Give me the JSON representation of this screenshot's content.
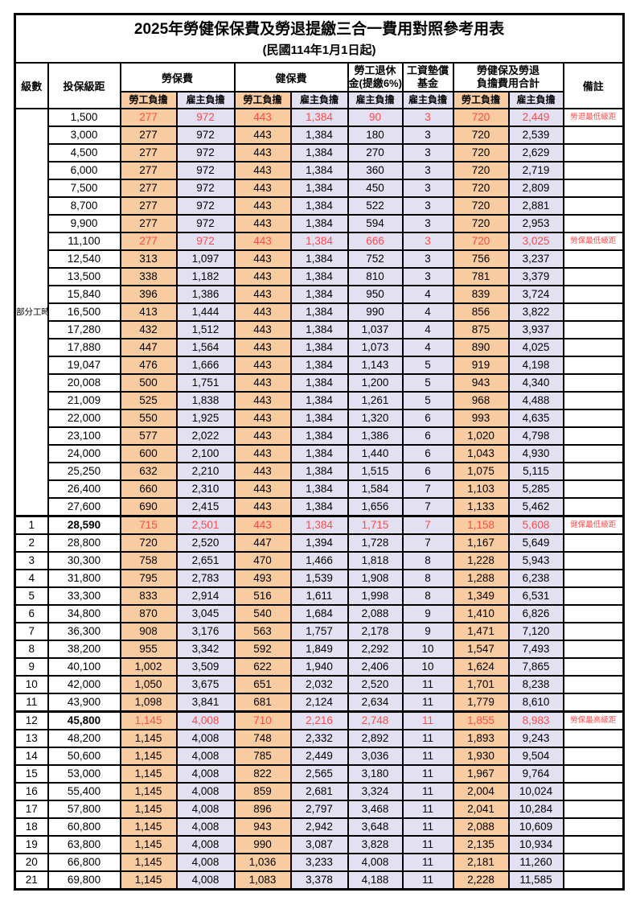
{
  "title": {
    "main": "2025年勞健保保費及勞退提繳三合一費用對照參考用表",
    "sub": "(民國114年1月1日起)"
  },
  "columns": {
    "level": "級數",
    "bracket": "投保級距",
    "labor": "勞保費",
    "health": "健保費",
    "pension": [
      "勞工退休",
      "金(提繳6%)"
    ],
    "fund": [
      "工資墊償",
      "基金"
    ],
    "total": [
      "勞健保及勞退",
      "負擔費用合計"
    ],
    "note": "備註",
    "employee": "勞工負擔",
    "employer": "雇主負擔"
  },
  "part_time": {
    "label": "部分工時",
    "rowspan": 23
  },
  "colors": {
    "employee_bg": "#F8CBA0",
    "employer_bg": "#E2E0F1",
    "highlight_red": "#FF4B4B",
    "border": "#000000"
  },
  "rows": [
    {
      "level": "",
      "bracket": "1,500",
      "labor_emp": "277",
      "labor_er": "972",
      "health_emp": "443",
      "health_er": "1,384",
      "pension": "90",
      "fund": "3",
      "total_emp": "720",
      "total_er": "2,449",
      "note": "勞退最低級距",
      "red": true,
      "em": false
    },
    {
      "level": "",
      "bracket": "3,000",
      "labor_emp": "277",
      "labor_er": "972",
      "health_emp": "443",
      "health_er": "1,384",
      "pension": "180",
      "fund": "3",
      "total_emp": "720",
      "total_er": "2,539",
      "note": "",
      "red": false,
      "em": false
    },
    {
      "level": "",
      "bracket": "4,500",
      "labor_emp": "277",
      "labor_er": "972",
      "health_emp": "443",
      "health_er": "1,384",
      "pension": "270",
      "fund": "3",
      "total_emp": "720",
      "total_er": "2,629",
      "note": "",
      "red": false,
      "em": false
    },
    {
      "level": "",
      "bracket": "6,000",
      "labor_emp": "277",
      "labor_er": "972",
      "health_emp": "443",
      "health_er": "1,384",
      "pension": "360",
      "fund": "3",
      "total_emp": "720",
      "total_er": "2,719",
      "note": "",
      "red": false,
      "em": false
    },
    {
      "level": "",
      "bracket": "7,500",
      "labor_emp": "277",
      "labor_er": "972",
      "health_emp": "443",
      "health_er": "1,384",
      "pension": "450",
      "fund": "3",
      "total_emp": "720",
      "total_er": "2,809",
      "note": "",
      "red": false,
      "em": false
    },
    {
      "level": "",
      "bracket": "8,700",
      "labor_emp": "277",
      "labor_er": "972",
      "health_emp": "443",
      "health_er": "1,384",
      "pension": "522",
      "fund": "3",
      "total_emp": "720",
      "total_er": "2,881",
      "note": "",
      "red": false,
      "em": false
    },
    {
      "level": "",
      "bracket": "9,900",
      "labor_emp": "277",
      "labor_er": "972",
      "health_emp": "443",
      "health_er": "1,384",
      "pension": "594",
      "fund": "3",
      "total_emp": "720",
      "total_er": "2,953",
      "note": "",
      "red": false,
      "em": false
    },
    {
      "level": "",
      "bracket": "11,100",
      "labor_emp": "277",
      "labor_er": "972",
      "health_emp": "443",
      "health_er": "1,384",
      "pension": "666",
      "fund": "3",
      "total_emp": "720",
      "total_er": "3,025",
      "note": "勞保最低級距",
      "red": true,
      "em": false
    },
    {
      "level": "",
      "bracket": "12,540",
      "labor_emp": "313",
      "labor_er": "1,097",
      "health_emp": "443",
      "health_er": "1,384",
      "pension": "752",
      "fund": "3",
      "total_emp": "756",
      "total_er": "3,237",
      "note": "",
      "red": false,
      "em": false
    },
    {
      "level": "",
      "bracket": "13,500",
      "labor_emp": "338",
      "labor_er": "1,182",
      "health_emp": "443",
      "health_er": "1,384",
      "pension": "810",
      "fund": "3",
      "total_emp": "781",
      "total_er": "3,379",
      "note": "",
      "red": false,
      "em": false
    },
    {
      "level": "",
      "bracket": "15,840",
      "labor_emp": "396",
      "labor_er": "1,386",
      "health_emp": "443",
      "health_er": "1,384",
      "pension": "950",
      "fund": "4",
      "total_emp": "839",
      "total_er": "3,724",
      "note": "",
      "red": false,
      "em": false
    },
    {
      "level": "",
      "bracket": "16,500",
      "labor_emp": "413",
      "labor_er": "1,444",
      "health_emp": "443",
      "health_er": "1,384",
      "pension": "990",
      "fund": "4",
      "total_emp": "856",
      "total_er": "3,822",
      "note": "",
      "red": false,
      "em": false
    },
    {
      "level": "",
      "bracket": "17,280",
      "labor_emp": "432",
      "labor_er": "1,512",
      "health_emp": "443",
      "health_er": "1,384",
      "pension": "1,037",
      "fund": "4",
      "total_emp": "875",
      "total_er": "3,937",
      "note": "",
      "red": false,
      "em": false
    },
    {
      "level": "",
      "bracket": "17,880",
      "labor_emp": "447",
      "labor_er": "1,564",
      "health_emp": "443",
      "health_er": "1,384",
      "pension": "1,073",
      "fund": "4",
      "total_emp": "890",
      "total_er": "4,025",
      "note": "",
      "red": false,
      "em": false
    },
    {
      "level": "",
      "bracket": "19,047",
      "labor_emp": "476",
      "labor_er": "1,666",
      "health_emp": "443",
      "health_er": "1,384",
      "pension": "1,143",
      "fund": "5",
      "total_emp": "919",
      "total_er": "4,198",
      "note": "",
      "red": false,
      "em": false
    },
    {
      "level": "",
      "bracket": "20,008",
      "labor_emp": "500",
      "labor_er": "1,751",
      "health_emp": "443",
      "health_er": "1,384",
      "pension": "1,200",
      "fund": "5",
      "total_emp": "943",
      "total_er": "4,340",
      "note": "",
      "red": false,
      "em": false
    },
    {
      "level": "",
      "bracket": "21,009",
      "labor_emp": "525",
      "labor_er": "1,838",
      "health_emp": "443",
      "health_er": "1,384",
      "pension": "1,261",
      "fund": "5",
      "total_emp": "968",
      "total_er": "4,488",
      "note": "",
      "red": false,
      "em": false
    },
    {
      "level": "",
      "bracket": "22,000",
      "labor_emp": "550",
      "labor_er": "1,925",
      "health_emp": "443",
      "health_er": "1,384",
      "pension": "1,320",
      "fund": "6",
      "total_emp": "993",
      "total_er": "4,635",
      "note": "",
      "red": false,
      "em": false
    },
    {
      "level": "",
      "bracket": "23,100",
      "labor_emp": "577",
      "labor_er": "2,022",
      "health_emp": "443",
      "health_er": "1,384",
      "pension": "1,386",
      "fund": "6",
      "total_emp": "1,020",
      "total_er": "4,798",
      "note": "",
      "red": false,
      "em": false
    },
    {
      "level": "",
      "bracket": "24,000",
      "labor_emp": "600",
      "labor_er": "2,100",
      "health_emp": "443",
      "health_er": "1,384",
      "pension": "1,440",
      "fund": "6",
      "total_emp": "1,043",
      "total_er": "4,930",
      "note": "",
      "red": false,
      "em": false
    },
    {
      "level": "",
      "bracket": "25,250",
      "labor_emp": "632",
      "labor_er": "2,210",
      "health_emp": "443",
      "health_er": "1,384",
      "pension": "1,515",
      "fund": "6",
      "total_emp": "1,075",
      "total_er": "5,115",
      "note": "",
      "red": false,
      "em": false
    },
    {
      "level": "",
      "bracket": "26,400",
      "labor_emp": "660",
      "labor_er": "2,310",
      "health_emp": "443",
      "health_er": "1,384",
      "pension": "1,584",
      "fund": "7",
      "total_emp": "1,103",
      "total_er": "5,285",
      "note": "",
      "red": false,
      "em": false
    },
    {
      "level": "",
      "bracket": "27,600",
      "labor_emp": "690",
      "labor_er": "2,415",
      "health_emp": "443",
      "health_er": "1,384",
      "pension": "1,656",
      "fund": "7",
      "total_emp": "1,133",
      "total_er": "5,462",
      "note": "",
      "red": false,
      "em": false
    },
    {
      "level": "1",
      "bracket": "28,590",
      "labor_emp": "715",
      "labor_er": "2,501",
      "health_emp": "443",
      "health_er": "1,384",
      "pension": "1,715",
      "fund": "7",
      "total_emp": "1,158",
      "total_er": "5,608",
      "note": "健保最低級距",
      "red": true,
      "em": true
    },
    {
      "level": "2",
      "bracket": "28,800",
      "labor_emp": "720",
      "labor_er": "2,520",
      "health_emp": "447",
      "health_er": "1,394",
      "pension": "1,728",
      "fund": "7",
      "total_emp": "1,167",
      "total_er": "5,649",
      "note": "",
      "red": false,
      "em": false
    },
    {
      "level": "3",
      "bracket": "30,300",
      "labor_emp": "758",
      "labor_er": "2,651",
      "health_emp": "470",
      "health_er": "1,466",
      "pension": "1,818",
      "fund": "8",
      "total_emp": "1,228",
      "total_er": "5,943",
      "note": "",
      "red": false,
      "em": false
    },
    {
      "level": "4",
      "bracket": "31,800",
      "labor_emp": "795",
      "labor_er": "2,783",
      "health_emp": "493",
      "health_er": "1,539",
      "pension": "1,908",
      "fund": "8",
      "total_emp": "1,288",
      "total_er": "6,238",
      "note": "",
      "red": false,
      "em": false
    },
    {
      "level": "5",
      "bracket": "33,300",
      "labor_emp": "833",
      "labor_er": "2,914",
      "health_emp": "516",
      "health_er": "1,611",
      "pension": "1,998",
      "fund": "8",
      "total_emp": "1,349",
      "total_er": "6,531",
      "note": "",
      "red": false,
      "em": false
    },
    {
      "level": "6",
      "bracket": "34,800",
      "labor_emp": "870",
      "labor_er": "3,045",
      "health_emp": "540",
      "health_er": "1,684",
      "pension": "2,088",
      "fund": "9",
      "total_emp": "1,410",
      "total_er": "6,826",
      "note": "",
      "red": false,
      "em": false
    },
    {
      "level": "7",
      "bracket": "36,300",
      "labor_emp": "908",
      "labor_er": "3,176",
      "health_emp": "563",
      "health_er": "1,757",
      "pension": "2,178",
      "fund": "9",
      "total_emp": "1,471",
      "total_er": "7,120",
      "note": "",
      "red": false,
      "em": false
    },
    {
      "level": "8",
      "bracket": "38,200",
      "labor_emp": "955",
      "labor_er": "3,342",
      "health_emp": "592",
      "health_er": "1,849",
      "pension": "2,292",
      "fund": "10",
      "total_emp": "1,547",
      "total_er": "7,493",
      "note": "",
      "red": false,
      "em": false
    },
    {
      "level": "9",
      "bracket": "40,100",
      "labor_emp": "1,002",
      "labor_er": "3,509",
      "health_emp": "622",
      "health_er": "1,940",
      "pension": "2,406",
      "fund": "10",
      "total_emp": "1,624",
      "total_er": "7,865",
      "note": "",
      "red": false,
      "em": false
    },
    {
      "level": "10",
      "bracket": "42,000",
      "labor_emp": "1,050",
      "labor_er": "3,675",
      "health_emp": "651",
      "health_er": "2,032",
      "pension": "2,520",
      "fund": "11",
      "total_emp": "1,701",
      "total_er": "8,238",
      "note": "",
      "red": false,
      "em": false
    },
    {
      "level": "11",
      "bracket": "43,900",
      "labor_emp": "1,098",
      "labor_er": "3,841",
      "health_emp": "681",
      "health_er": "2,124",
      "pension": "2,634",
      "fund": "11",
      "total_emp": "1,779",
      "total_er": "8,610",
      "note": "",
      "red": false,
      "em": false
    },
    {
      "level": "12",
      "bracket": "45,800",
      "labor_emp": "1,145",
      "labor_er": "4,008",
      "health_emp": "710",
      "health_er": "2,216",
      "pension": "2,748",
      "fund": "11",
      "total_emp": "1,855",
      "total_er": "8,983",
      "note": "勞保最高級距",
      "red": true,
      "em": true
    },
    {
      "level": "13",
      "bracket": "48,200",
      "labor_emp": "1,145",
      "labor_er": "4,008",
      "health_emp": "748",
      "health_er": "2,332",
      "pension": "2,892",
      "fund": "11",
      "total_emp": "1,893",
      "total_er": "9,243",
      "note": "",
      "red": false,
      "em": false
    },
    {
      "level": "14",
      "bracket": "50,600",
      "labor_emp": "1,145",
      "labor_er": "4,008",
      "health_emp": "785",
      "health_er": "2,449",
      "pension": "3,036",
      "fund": "11",
      "total_emp": "1,930",
      "total_er": "9,504",
      "note": "",
      "red": false,
      "em": false
    },
    {
      "level": "15",
      "bracket": "53,000",
      "labor_emp": "1,145",
      "labor_er": "4,008",
      "health_emp": "822",
      "health_er": "2,565",
      "pension": "3,180",
      "fund": "11",
      "total_emp": "1,967",
      "total_er": "9,764",
      "note": "",
      "red": false,
      "em": false
    },
    {
      "level": "16",
      "bracket": "55,400",
      "labor_emp": "1,145",
      "labor_er": "4,008",
      "health_emp": "859",
      "health_er": "2,681",
      "pension": "3,324",
      "fund": "11",
      "total_emp": "2,004",
      "total_er": "10,024",
      "note": "",
      "red": false,
      "em": false
    },
    {
      "level": "17",
      "bracket": "57,800",
      "labor_emp": "1,145",
      "labor_er": "4,008",
      "health_emp": "896",
      "health_er": "2,797",
      "pension": "3,468",
      "fund": "11",
      "total_emp": "2,041",
      "total_er": "10,284",
      "note": "",
      "red": false,
      "em": false
    },
    {
      "level": "18",
      "bracket": "60,800",
      "labor_emp": "1,145",
      "labor_er": "4,008",
      "health_emp": "943",
      "health_er": "2,942",
      "pension": "3,648",
      "fund": "11",
      "total_emp": "2,088",
      "total_er": "10,609",
      "note": "",
      "red": false,
      "em": false
    },
    {
      "level": "19",
      "bracket": "63,800",
      "labor_emp": "1,145",
      "labor_er": "4,008",
      "health_emp": "990",
      "health_er": "3,087",
      "pension": "3,828",
      "fund": "11",
      "total_emp": "2,135",
      "total_er": "10,934",
      "note": "",
      "red": false,
      "em": false
    },
    {
      "level": "20",
      "bracket": "66,800",
      "labor_emp": "1,145",
      "labor_er": "4,008",
      "health_emp": "1,036",
      "health_er": "3,233",
      "pension": "4,008",
      "fund": "11",
      "total_emp": "2,181",
      "total_er": "11,260",
      "note": "",
      "red": false,
      "em": false
    },
    {
      "level": "21",
      "bracket": "69,800",
      "labor_emp": "1,145",
      "labor_er": "4,008",
      "health_emp": "1,083",
      "health_er": "3,378",
      "pension": "4,188",
      "fund": "11",
      "total_emp": "2,228",
      "total_er": "11,585",
      "note": "",
      "red": false,
      "em": false
    }
  ]
}
